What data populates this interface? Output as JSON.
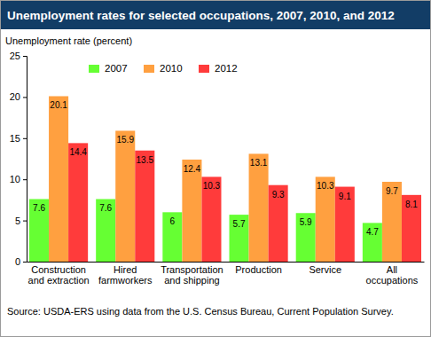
{
  "chart_data": {
    "type": "bar",
    "title": "Unemployment rates for selected occupations, 2007, 2010, and 2012",
    "ylabel": "Unemployment rate (percent)",
    "source": "Source: USDA-ERS using data from the U.S. Census Bureau, Current Population Survey.",
    "categories": [
      "Construction and extraction",
      "Hired farmworkers",
      "Transportation and shipping",
      "Production",
      "Service",
      "All occupations"
    ],
    "series": [
      {
        "name": "2007",
        "color": "#66ff33",
        "values": [
          7.6,
          7.6,
          6.0,
          5.7,
          5.9,
          4.7
        ]
      },
      {
        "name": "2010",
        "color": "#ffa040",
        "values": [
          20.1,
          15.9,
          12.4,
          13.1,
          10.3,
          9.7
        ]
      },
      {
        "name": "2012",
        "color": "#ff3b3b",
        "values": [
          14.4,
          13.5,
          10.3,
          9.3,
          9.1,
          8.1
        ]
      }
    ],
    "ylim": [
      0,
      25
    ],
    "yticks": [
      0,
      5,
      10,
      15,
      20,
      25
    ],
    "grid": false,
    "legend": "upper left",
    "data_labels": true
  }
}
